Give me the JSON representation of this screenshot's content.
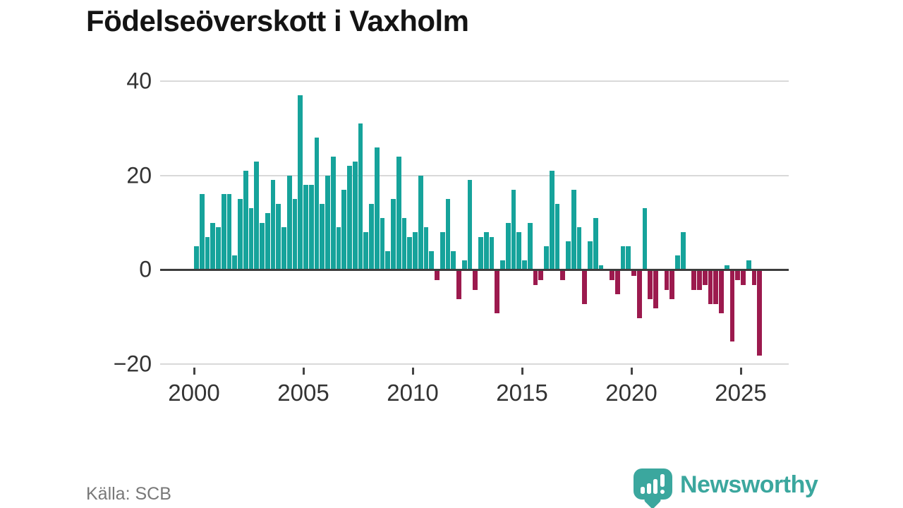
{
  "title": "Födelseöverskott i Vaxholm",
  "source": "Källa: SCB",
  "brand": {
    "name": "Newsworthy",
    "color": "#3ba79e",
    "icon": "bar-chart-speech-bubble-icon"
  },
  "colors": {
    "positive_bar": "#16a39b",
    "negative_bar": "#9c1a4e",
    "gridline": "#d9d9d9",
    "zero_line": "#3d3d3d",
    "axis_text": "#333333",
    "title_text": "#141414",
    "source_text": "#787878"
  },
  "chart_data": {
    "type": "bar",
    "title": "Födelseöverskott i Vaxholm",
    "frequency": "quarterly",
    "start_period": "2000Q1",
    "end_period": "2025Q4",
    "ylim": [
      -20,
      40
    ],
    "grid": "horizontal",
    "y_ticks": [
      {
        "value": 40,
        "label": "40"
      },
      {
        "value": 20,
        "label": "20"
      },
      {
        "value": 0,
        "label": "0"
      },
      {
        "value": -20,
        "label": "−20"
      }
    ],
    "x_ticks": [
      {
        "year": 2000,
        "label": "2000"
      },
      {
        "year": 2005,
        "label": "2005"
      },
      {
        "year": 2010,
        "label": "2010"
      },
      {
        "year": 2015,
        "label": "2015"
      },
      {
        "year": 2020,
        "label": "2020"
      },
      {
        "year": 2025,
        "label": "2025"
      }
    ],
    "values": [
      5,
      16,
      7,
      10,
      9,
      16,
      16,
      3,
      15,
      21,
      13,
      23,
      10,
      12,
      19,
      14,
      9,
      20,
      15,
      37,
      18,
      18,
      28,
      14,
      20,
      24,
      9,
      17,
      22,
      23,
      31,
      8,
      14,
      26,
      11,
      4,
      15,
      24,
      11,
      7,
      8,
      20,
      9,
      4,
      -2,
      8,
      15,
      4,
      -6,
      2,
      19,
      -4,
      7,
      8,
      7,
      -9,
      2,
      10,
      17,
      8,
      2,
      10,
      -3,
      -2,
      5,
      21,
      14,
      -2,
      6,
      17,
      9,
      -7,
      6,
      11,
      1,
      0,
      -2,
      -5,
      5,
      5,
      -1,
      -10,
      13,
      -6,
      -8,
      0,
      -4,
      -6,
      3,
      8,
      0,
      -4,
      -4,
      -3,
      -7,
      -7,
      -9,
      1,
      -15,
      -2,
      -3,
      2,
      -3,
      -18
    ]
  }
}
